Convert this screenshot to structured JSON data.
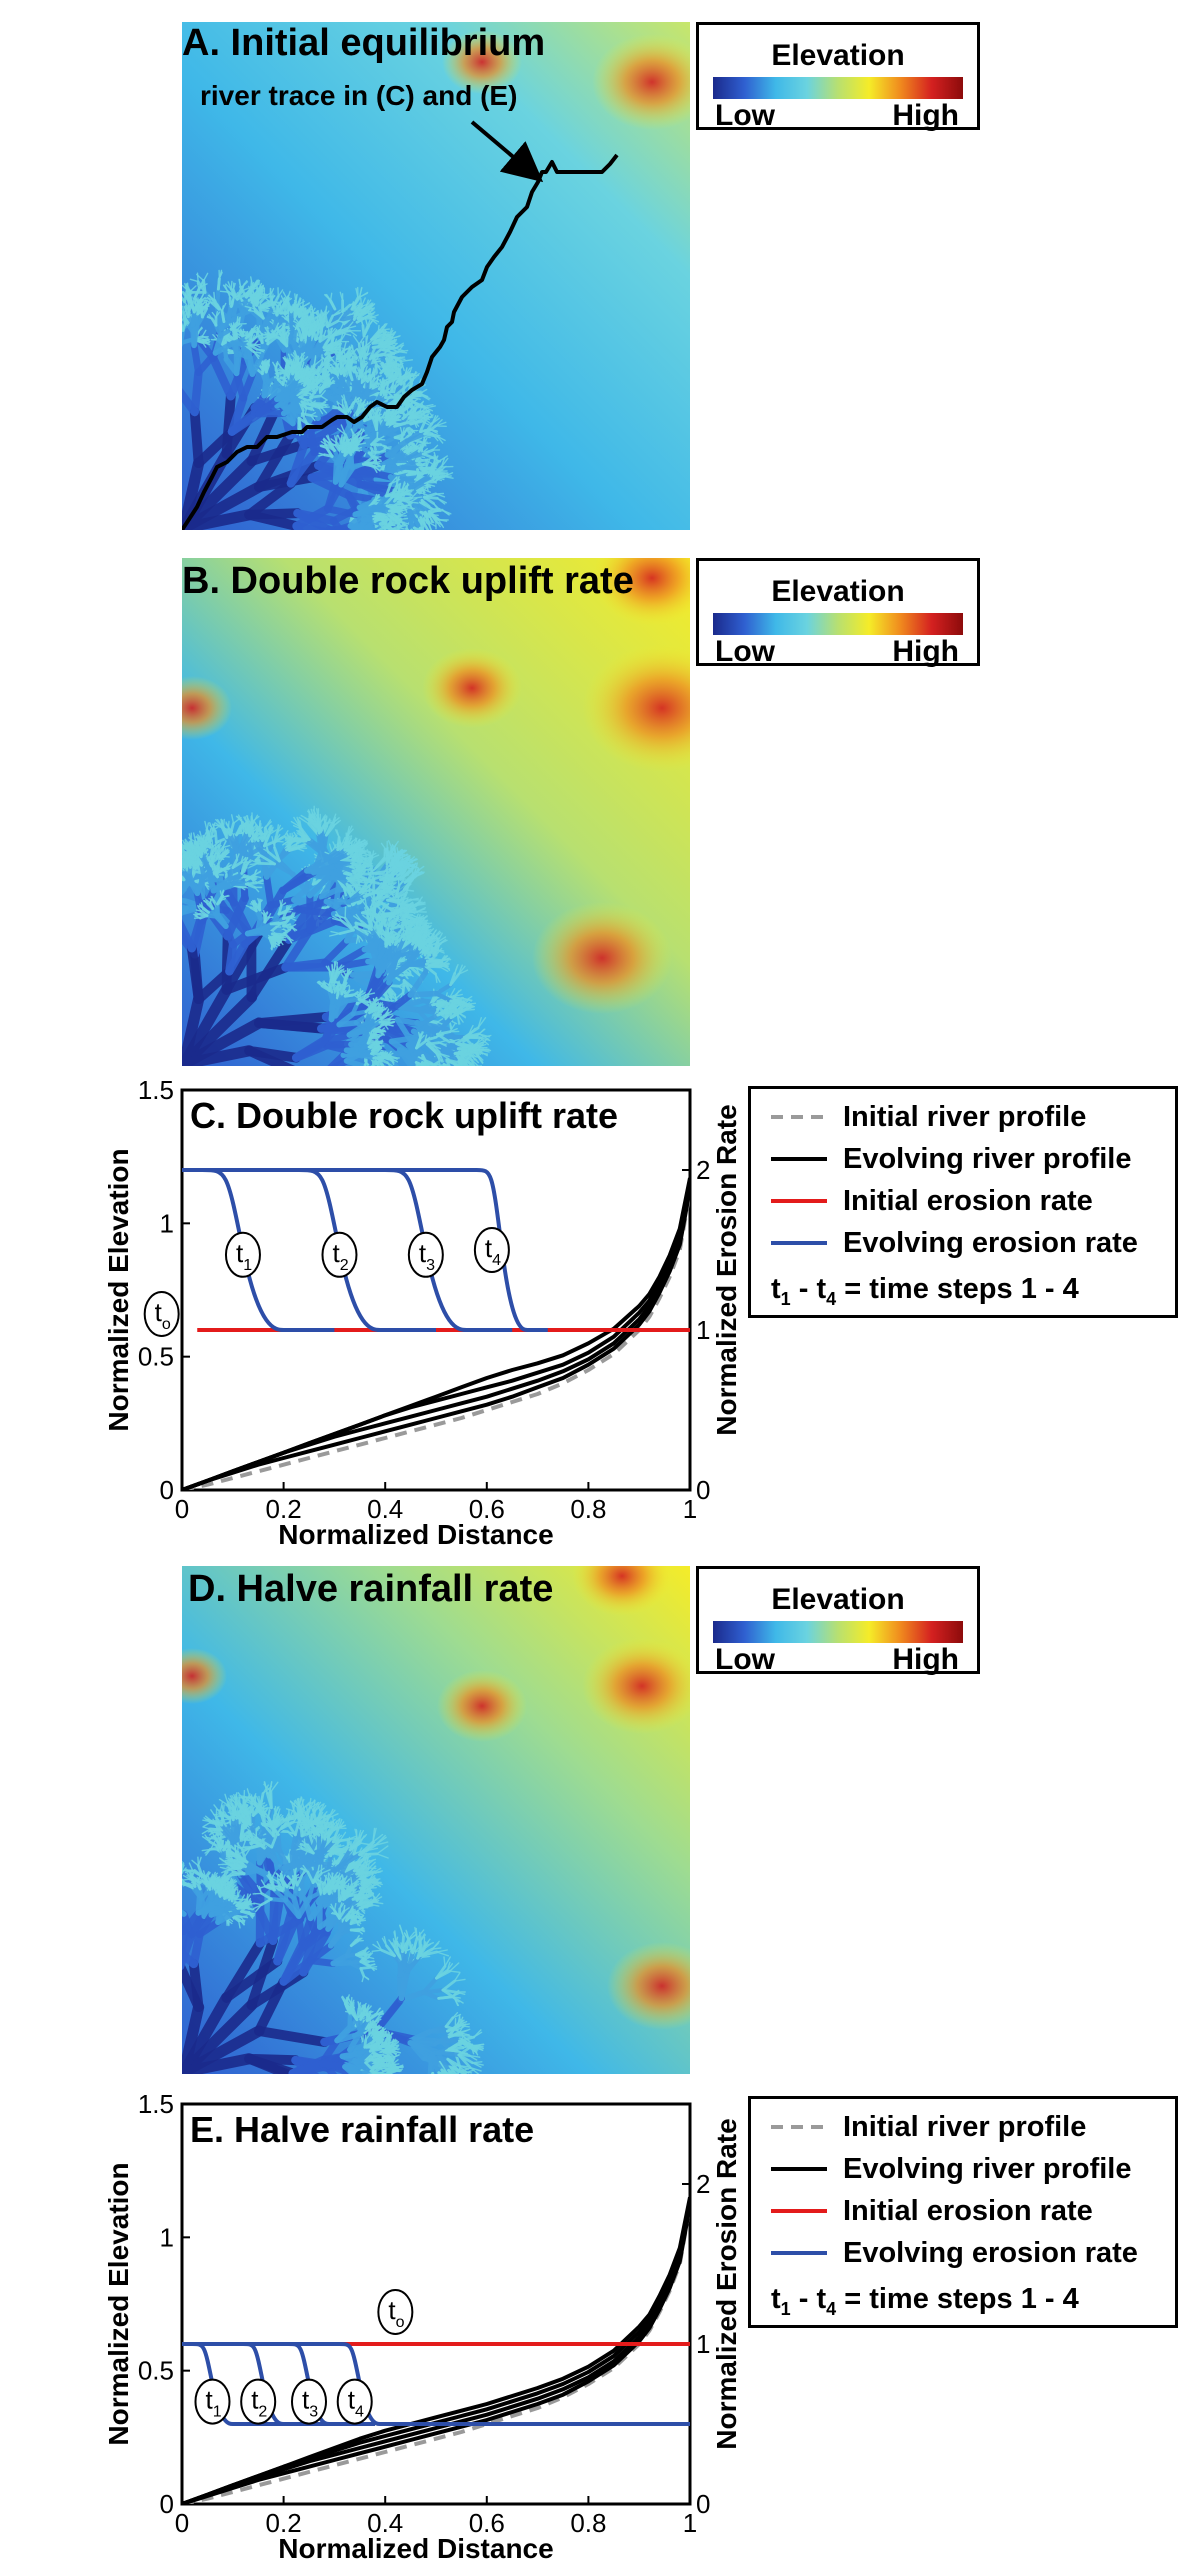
{
  "panels": {
    "a": {
      "title": "A. Initial equilibrium",
      "annotation": "river trace in (C) and (E)"
    },
    "b": {
      "title": "B. Double rock uplift rate"
    },
    "c": {
      "title": "C. Double rock uplift rate"
    },
    "d": {
      "title": "D. Halve rainfall rate"
    },
    "e": {
      "title": "E. Halve rainfall rate"
    }
  },
  "elevation_legend": {
    "title": "Elevation",
    "low": "Low",
    "high": "High",
    "colors": [
      "#1b2a8c",
      "#2f5fd0",
      "#3fb8e8",
      "#6ad3e0",
      "#b8e070",
      "#f5ec28",
      "#f08a1e",
      "#d42020",
      "#8c0b0b"
    ]
  },
  "colors": {
    "initial_profile": "#9a9a9a",
    "evolving_profile": "#000000",
    "initial_erosion": "#e31b1b",
    "evolving_erosion": "#2d4ea8"
  },
  "key": {
    "initial_profile": "Initial river profile",
    "evolving_profile": "Evolving river profile",
    "initial_erosion": "Initial erosion rate",
    "evolving_erosion": "Evolving erosion rate",
    "note_t": "t",
    "note_sub1": "1",
    "note_mid": " - t",
    "note_sub4": "4",
    "note_end": " = time steps 1 - 4"
  },
  "chart_data": [
    {
      "panel": "C",
      "type": "line",
      "title": "C. Double rock uplift rate",
      "xlabel": "Normalized Distance",
      "ylabel": "Normalized Elevation",
      "y2label": "Normalized Erosion Rate",
      "xlim": [
        0,
        1
      ],
      "ylim": [
        0,
        1.5
      ],
      "y2lim": [
        0,
        2.5
      ],
      "xticks": [
        "0",
        "0.2",
        "0.4",
        "0.6",
        "0.8",
        "1"
      ],
      "yticks": [
        "0",
        "0.5",
        "1",
        "1.5"
      ],
      "y2ticks": [
        "0",
        "1",
        "2"
      ],
      "x": [
        0,
        0.05,
        0.1,
        0.15,
        0.2,
        0.25,
        0.3,
        0.35,
        0.4,
        0.45,
        0.5,
        0.55,
        0.6,
        0.65,
        0.7,
        0.75,
        0.8,
        0.85,
        0.9,
        0.92,
        0.94,
        0.96,
        0.98,
        1.0
      ],
      "profile_series": [
        {
          "name": "Initial river profile",
          "values": [
            0,
            0.02,
            0.045,
            0.07,
            0.095,
            0.12,
            0.145,
            0.17,
            0.195,
            0.22,
            0.245,
            0.27,
            0.3,
            0.33,
            0.36,
            0.4,
            0.45,
            0.51,
            0.6,
            0.65,
            0.72,
            0.8,
            0.9,
            1.12
          ]
        },
        {
          "name": "Evolving river profile",
          "values": [
            0,
            0.035,
            0.065,
            0.095,
            0.12,
            0.145,
            0.17,
            0.195,
            0.22,
            0.245,
            0.27,
            0.295,
            0.32,
            0.35,
            0.385,
            0.42,
            0.47,
            0.53,
            0.62,
            0.67,
            0.74,
            0.82,
            0.92,
            1.13
          ]
        },
        {
          "name": "Evolving river profile",
          "values": [
            0,
            0.035,
            0.07,
            0.105,
            0.14,
            0.17,
            0.2,
            0.225,
            0.25,
            0.275,
            0.3,
            0.325,
            0.35,
            0.38,
            0.41,
            0.445,
            0.49,
            0.55,
            0.64,
            0.69,
            0.76,
            0.84,
            0.94,
            1.14
          ]
        },
        {
          "name": "Evolving river profile",
          "values": [
            0,
            0.035,
            0.07,
            0.105,
            0.14,
            0.175,
            0.21,
            0.245,
            0.28,
            0.31,
            0.335,
            0.36,
            0.385,
            0.41,
            0.44,
            0.47,
            0.515,
            0.575,
            0.665,
            0.71,
            0.78,
            0.86,
            0.96,
            1.15
          ]
        },
        {
          "name": "Evolving river profile",
          "values": [
            0,
            0.035,
            0.07,
            0.105,
            0.14,
            0.175,
            0.21,
            0.245,
            0.28,
            0.315,
            0.35,
            0.385,
            0.42,
            0.45,
            0.475,
            0.505,
            0.55,
            0.605,
            0.69,
            0.735,
            0.8,
            0.88,
            0.98,
            1.17
          ]
        }
      ],
      "erosion_initial": {
        "name": "Initial erosion rate",
        "x": [
          0.03,
          1
        ],
        "values": [
          1,
          1
        ]
      },
      "erosion_evolving": [
        {
          "x": [
            0,
            0.04,
            0.2,
            0.3
          ],
          "values": [
            2,
            2,
            1,
            1
          ]
        },
        {
          "x": [
            0,
            0.23,
            0.39,
            0.5
          ],
          "values": [
            2,
            2,
            1,
            1
          ]
        },
        {
          "x": [
            0,
            0.4,
            0.56,
            0.65
          ],
          "values": [
            2,
            2,
            1,
            1
          ]
        },
        {
          "x": [
            0,
            0.58,
            0.68,
            0.72
          ],
          "values": [
            2,
            2,
            1,
            1
          ]
        }
      ],
      "labels": [
        {
          "text": "t",
          "sub": "1",
          "x": 0.12,
          "y2": 1.47
        },
        {
          "text": "t",
          "sub": "2",
          "x": 0.31,
          "y2": 1.47
        },
        {
          "text": "t",
          "sub": "3",
          "x": 0.48,
          "y2": 1.47
        },
        {
          "text": "t",
          "sub": "4",
          "x": 0.61,
          "y2": 1.5
        },
        {
          "text": "t",
          "sub": "o",
          "x": -0.04,
          "y2": 1.1
        }
      ]
    },
    {
      "panel": "E",
      "type": "line",
      "title": "E. Halve rainfall rate",
      "xlabel": "Normalized Distance",
      "ylabel": "Normalized Elevation",
      "y2label": "Normalized Erosion Rate",
      "xlim": [
        0,
        1
      ],
      "ylim": [
        0,
        1.5
      ],
      "y2lim": [
        0,
        2.5
      ],
      "xticks": [
        "0",
        "0.2",
        "0.4",
        "0.6",
        "0.8",
        "1"
      ],
      "yticks": [
        "0",
        "0.5",
        "1",
        "1.5"
      ],
      "y2ticks": [
        "0",
        "1",
        "2"
      ],
      "x": [
        0,
        0.05,
        0.1,
        0.15,
        0.2,
        0.25,
        0.3,
        0.35,
        0.4,
        0.45,
        0.5,
        0.55,
        0.6,
        0.65,
        0.7,
        0.75,
        0.8,
        0.85,
        0.9,
        0.92,
        0.94,
        0.96,
        0.98,
        1.0
      ],
      "profile_series": [
        {
          "name": "Initial river profile",
          "values": [
            0,
            0.02,
            0.045,
            0.07,
            0.095,
            0.12,
            0.145,
            0.17,
            0.195,
            0.22,
            0.245,
            0.27,
            0.3,
            0.33,
            0.36,
            0.4,
            0.45,
            0.51,
            0.6,
            0.65,
            0.72,
            0.8,
            0.9,
            1.12
          ]
        },
        {
          "name": "Evolving river profile",
          "values": [
            0,
            0.03,
            0.06,
            0.09,
            0.115,
            0.14,
            0.165,
            0.19,
            0.215,
            0.24,
            0.265,
            0.29,
            0.315,
            0.345,
            0.375,
            0.41,
            0.46,
            0.52,
            0.61,
            0.66,
            0.73,
            0.81,
            0.91,
            1.12
          ]
        },
        {
          "name": "Evolving river profile",
          "values": [
            0,
            0.035,
            0.07,
            0.1,
            0.13,
            0.16,
            0.185,
            0.21,
            0.235,
            0.26,
            0.285,
            0.31,
            0.335,
            0.365,
            0.395,
            0.43,
            0.475,
            0.535,
            0.625,
            0.675,
            0.745,
            0.825,
            0.925,
            1.13
          ]
        },
        {
          "name": "Evolving river profile",
          "values": [
            0,
            0.035,
            0.07,
            0.105,
            0.14,
            0.17,
            0.2,
            0.23,
            0.255,
            0.28,
            0.305,
            0.33,
            0.355,
            0.385,
            0.415,
            0.45,
            0.495,
            0.555,
            0.645,
            0.69,
            0.76,
            0.84,
            0.94,
            1.14
          ]
        },
        {
          "name": "Evolving river profile",
          "values": [
            0,
            0.035,
            0.07,
            0.105,
            0.14,
            0.175,
            0.21,
            0.245,
            0.275,
            0.3,
            0.325,
            0.35,
            0.375,
            0.405,
            0.435,
            0.47,
            0.515,
            0.575,
            0.665,
            0.71,
            0.78,
            0.86,
            0.96,
            1.15
          ]
        }
      ],
      "erosion_initial": {
        "name": "Initial erosion rate",
        "x": [
          0,
          1
        ],
        "values": [
          1,
          1
        ]
      },
      "erosion_evolving": [
        {
          "x": [
            0,
            0.02,
            0.1,
            0.2
          ],
          "values": [
            1,
            1,
            0.5,
            0.5
          ]
        },
        {
          "x": [
            0,
            0.12,
            0.2,
            0.3
          ],
          "values": [
            1,
            1,
            0.5,
            0.5
          ]
        },
        {
          "x": [
            0,
            0.21,
            0.29,
            0.38
          ],
          "values": [
            1,
            1,
            0.5,
            0.5
          ]
        },
        {
          "x": [
            0,
            0.31,
            0.39,
            1
          ],
          "values": [
            1,
            1,
            0.5,
            0.5
          ]
        }
      ],
      "labels": [
        {
          "text": "t",
          "sub": "1",
          "x": 0.06,
          "y2": 0.64
        },
        {
          "text": "t",
          "sub": "2",
          "x": 0.15,
          "y2": 0.64
        },
        {
          "text": "t",
          "sub": "3",
          "x": 0.25,
          "y2": 0.64
        },
        {
          "text": "t",
          "sub": "4",
          "x": 0.34,
          "y2": 0.64
        },
        {
          "text": "t",
          "sub": "o",
          "x": 0.42,
          "y2": 1.2
        }
      ]
    }
  ]
}
